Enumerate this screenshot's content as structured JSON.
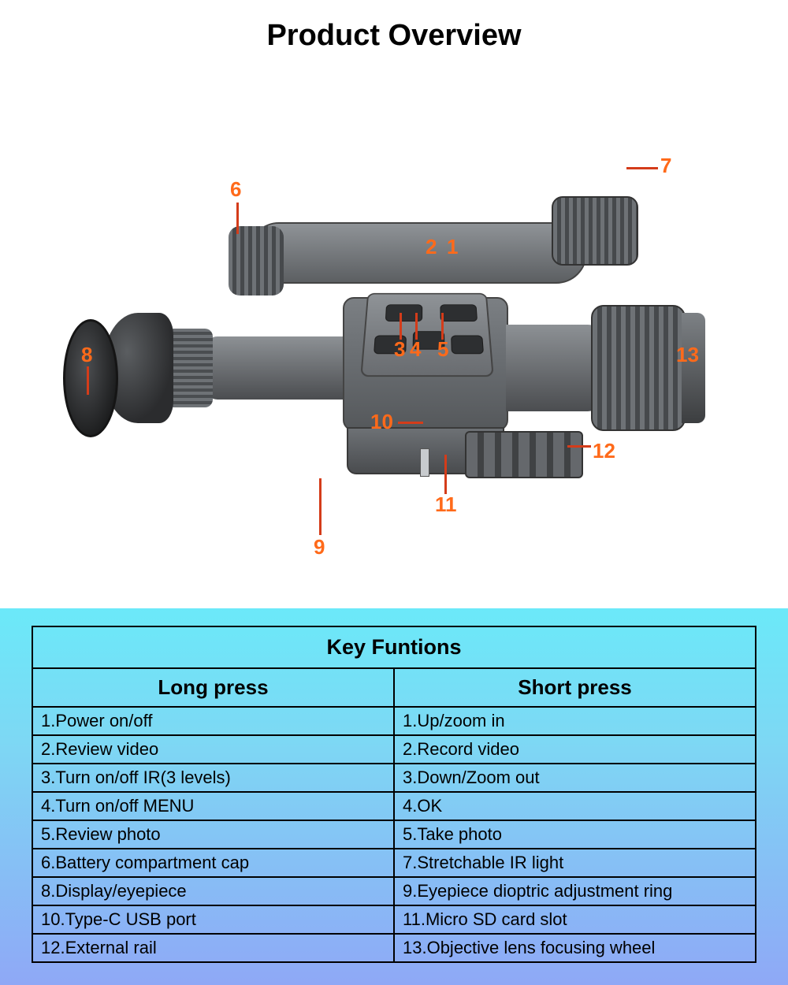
{
  "title": "Product Overview",
  "callouts": {
    "c1": "1",
    "c2": "2",
    "c3": "3",
    "c4": "4",
    "c5": "5",
    "c6": "6",
    "c7": "7",
    "c8": "8",
    "c9": "9",
    "c10": "10",
    "c11": "11",
    "c12": "12",
    "c13": "13"
  },
  "callout_color": "#ff6a1a",
  "leader_color": "#d43c1a",
  "table": {
    "header": "Key Funtions",
    "col_long": "Long press",
    "col_short": "Short press",
    "rows": [
      {
        "long": "1.Power on/off",
        "short": "1.Up/zoom in"
      },
      {
        "long": "2.Review video",
        "short": "2.Record video"
      },
      {
        "long": "3.Turn on/off IR(3 levels)",
        "short": "3.Down/Zoom out"
      },
      {
        "long": "4.Turn on/off MENU",
        "short": "4.OK"
      },
      {
        "long": "5.Review photo",
        "short": "5.Take photo"
      },
      {
        "long": "6.Battery compartment cap",
        "short": "7.Stretchable IR light"
      },
      {
        "long": "8.Display/eyepiece",
        "short": "9.Eyepiece dioptric adjustment ring"
      },
      {
        "long": "10.Type-C USB port",
        "short": "11.Micro SD card slot"
      },
      {
        "long": "12.External rail",
        "short": "13.Objective lens focusing wheel"
      }
    ],
    "gradient_top": "#6be9f9",
    "gradient_mid": "#7dd8f4",
    "gradient_bot": "#8fa8f6",
    "border_color": "#000000",
    "header_fontsize": 27,
    "colhead_fontsize": 26,
    "cell_fontsize": 22
  }
}
